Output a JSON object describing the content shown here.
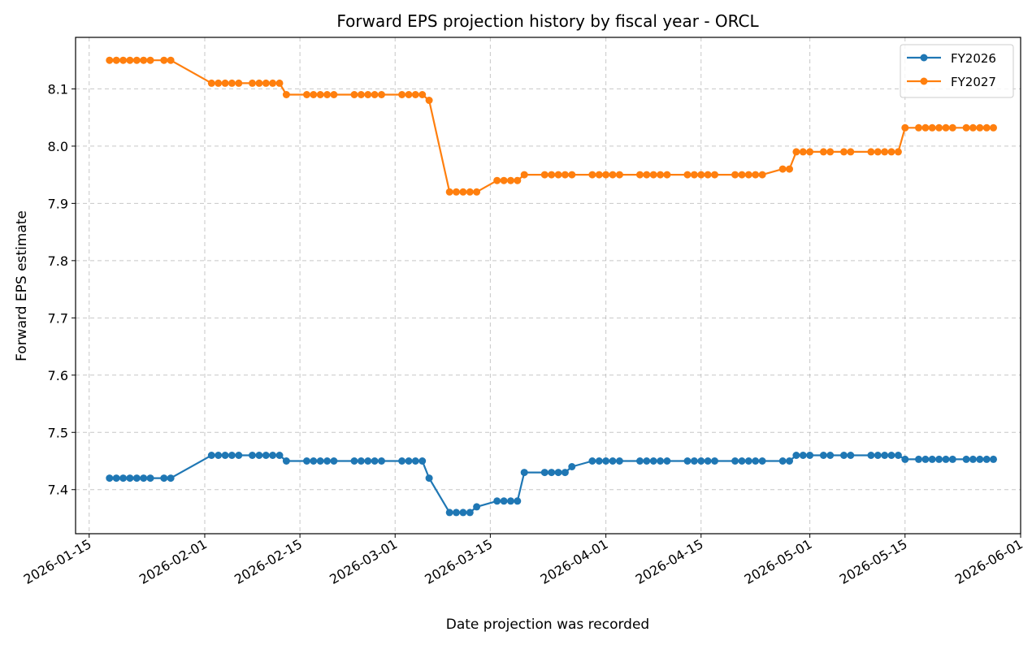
{
  "chart_data": {
    "type": "line",
    "title": "Forward EPS projection history by fiscal year - ORCL",
    "xlabel": "Date projection was recorded",
    "ylabel": "Forward EPS estimate",
    "xlim": [
      "2026-01-13",
      "2026-06-01"
    ],
    "ylim": [
      7.323,
      8.19
    ],
    "x_ticks": [
      "2026-01-15",
      "2026-02-01",
      "2026-02-15",
      "2026-03-01",
      "2026-03-15",
      "2026-04-01",
      "2026-04-15",
      "2026-05-01",
      "2026-05-15",
      "2026-06-01"
    ],
    "y_ticks": [
      7.4,
      7.5,
      7.6,
      7.7,
      7.8,
      7.9,
      8.0,
      8.1
    ],
    "y_tick_labels": [
      "7.4",
      "7.5",
      "7.6",
      "7.7",
      "7.8",
      "7.9",
      "8.0",
      "8.1"
    ],
    "grid": true,
    "legend_position": "top-right",
    "x": [
      "2026-01-18",
      "2026-01-19",
      "2026-01-20",
      "2026-01-21",
      "2026-01-22",
      "2026-01-23",
      "2026-01-24",
      "2026-01-26",
      "2026-01-27",
      "2026-02-02",
      "2026-02-03",
      "2026-02-04",
      "2026-02-05",
      "2026-02-06",
      "2026-02-08",
      "2026-02-09",
      "2026-02-10",
      "2026-02-11",
      "2026-02-12",
      "2026-02-13",
      "2026-02-16",
      "2026-02-17",
      "2026-02-18",
      "2026-02-19",
      "2026-02-20",
      "2026-02-23",
      "2026-02-24",
      "2026-02-25",
      "2026-02-26",
      "2026-02-27",
      "2026-03-02",
      "2026-03-03",
      "2026-03-04",
      "2026-03-05",
      "2026-03-06",
      "2026-03-09",
      "2026-03-10",
      "2026-03-11",
      "2026-03-12",
      "2026-03-13",
      "2026-03-16",
      "2026-03-17",
      "2026-03-18",
      "2026-03-19",
      "2026-03-20",
      "2026-03-23",
      "2026-03-24",
      "2026-03-25",
      "2026-03-26",
      "2026-03-27",
      "2026-03-30",
      "2026-03-31",
      "2026-04-01",
      "2026-04-02",
      "2026-04-03",
      "2026-04-06",
      "2026-04-07",
      "2026-04-08",
      "2026-04-09",
      "2026-04-10",
      "2026-04-13",
      "2026-04-14",
      "2026-04-15",
      "2026-04-16",
      "2026-04-17",
      "2026-04-20",
      "2026-04-21",
      "2026-04-22",
      "2026-04-23",
      "2026-04-24",
      "2026-04-27",
      "2026-04-28",
      "2026-04-29",
      "2026-04-30",
      "2026-05-01",
      "2026-05-03",
      "2026-05-04",
      "2026-05-06",
      "2026-05-07",
      "2026-05-10",
      "2026-05-11",
      "2026-05-12",
      "2026-05-13",
      "2026-05-14",
      "2026-05-15",
      "2026-05-17",
      "2026-05-18",
      "2026-05-19",
      "2026-05-20",
      "2026-05-21",
      "2026-05-22",
      "2026-05-24",
      "2026-05-25",
      "2026-05-26",
      "2026-05-27",
      "2026-05-28"
    ],
    "series": [
      {
        "name": "FY2026",
        "color": "#1f77b4",
        "values": [
          7.42,
          7.42,
          7.42,
          7.42,
          7.42,
          7.42,
          7.42,
          7.42,
          7.42,
          7.46,
          7.46,
          7.46,
          7.46,
          7.46,
          7.46,
          7.46,
          7.46,
          7.46,
          7.46,
          7.45,
          7.45,
          7.45,
          7.45,
          7.45,
          7.45,
          7.45,
          7.45,
          7.45,
          7.45,
          7.45,
          7.45,
          7.45,
          7.45,
          7.45,
          7.42,
          7.36,
          7.36,
          7.36,
          7.36,
          7.37,
          7.38,
          7.38,
          7.38,
          7.38,
          7.43,
          7.43,
          7.43,
          7.43,
          7.43,
          7.44,
          7.45,
          7.45,
          7.45,
          7.45,
          7.45,
          7.45,
          7.45,
          7.45,
          7.45,
          7.45,
          7.45,
          7.45,
          7.45,
          7.45,
          7.45,
          7.45,
          7.45,
          7.45,
          7.45,
          7.45,
          7.45,
          7.45,
          7.46,
          7.46,
          7.46,
          7.46,
          7.46,
          7.46,
          7.46,
          7.46,
          7.46,
          7.46,
          7.46,
          7.46,
          7.453,
          7.453,
          7.453,
          7.453,
          7.453,
          7.453,
          7.453,
          7.453,
          7.453,
          7.453,
          7.453,
          7.453
        ]
      },
      {
        "name": "FY2027",
        "color": "#ff7f0e",
        "values": [
          8.15,
          8.15,
          8.15,
          8.15,
          8.15,
          8.15,
          8.15,
          8.15,
          8.15,
          8.11,
          8.11,
          8.11,
          8.11,
          8.11,
          8.11,
          8.11,
          8.11,
          8.11,
          8.11,
          8.09,
          8.09,
          8.09,
          8.09,
          8.09,
          8.09,
          8.09,
          8.09,
          8.09,
          8.09,
          8.09,
          8.09,
          8.09,
          8.09,
          8.09,
          8.08,
          7.92,
          7.92,
          7.92,
          7.92,
          7.92,
          7.94,
          7.94,
          7.94,
          7.94,
          7.95,
          7.95,
          7.95,
          7.95,
          7.95,
          7.95,
          7.95,
          7.95,
          7.95,
          7.95,
          7.95,
          7.95,
          7.95,
          7.95,
          7.95,
          7.95,
          7.95,
          7.95,
          7.95,
          7.95,
          7.95,
          7.95,
          7.95,
          7.95,
          7.95,
          7.95,
          7.96,
          7.96,
          7.99,
          7.99,
          7.99,
          7.99,
          7.99,
          7.99,
          7.99,
          7.99,
          7.99,
          7.99,
          7.99,
          7.99,
          8.032,
          8.032,
          8.032,
          8.032,
          8.032,
          8.032,
          8.032,
          8.032,
          8.032,
          8.032,
          8.032,
          8.032
        ]
      }
    ]
  }
}
